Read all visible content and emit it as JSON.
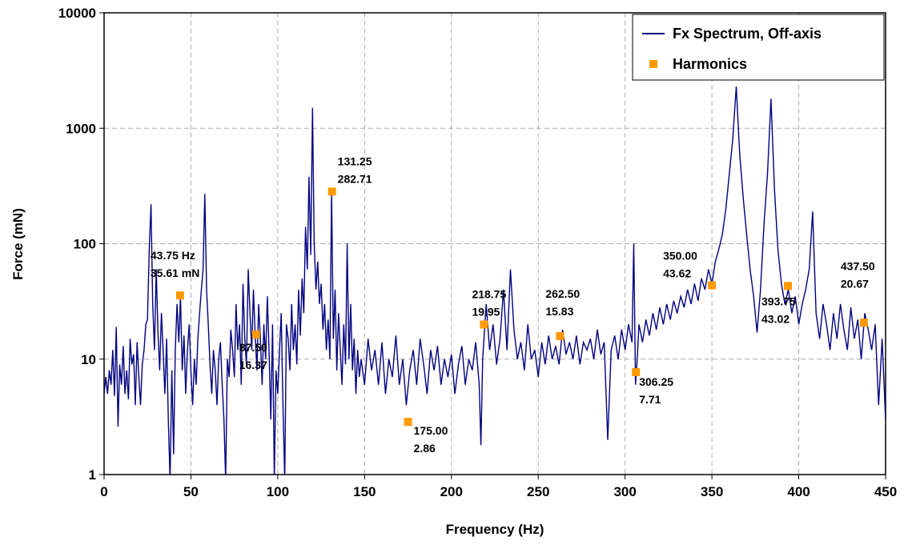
{
  "chart_data": {
    "type": "line",
    "xlabel": "Frequency (Hz)",
    "ylabel": "Force (mN)",
    "xlim": [
      0,
      450
    ],
    "xticks": [
      0,
      50,
      100,
      150,
      200,
      250,
      300,
      350,
      400,
      450
    ],
    "ylim": [
      1,
      10000
    ],
    "yticks": [
      1,
      10,
      100,
      1000,
      10000
    ],
    "log_y": true,
    "grid": true,
    "legend": "top-right",
    "series": [
      {
        "name": "Fx Spectrum, Off-axis",
        "color": "#000080",
        "x": [
          0,
          1,
          2,
          3,
          4,
          5,
          6,
          7,
          8,
          9,
          10,
          11,
          12,
          13,
          14,
          15,
          16,
          17,
          18,
          19,
          20,
          21,
          22,
          23,
          24,
          25,
          26,
          27,
          28,
          29,
          30,
          31,
          32,
          33,
          34,
          35,
          36,
          37,
          38,
          39,
          40,
          41,
          42,
          43,
          44,
          45,
          46,
          47,
          48,
          49,
          50,
          51,
          52,
          53,
          54,
          55,
          56,
          57,
          58,
          59,
          60,
          61,
          62,
          63,
          64,
          65,
          66,
          67,
          68,
          69,
          70,
          71,
          72,
          73,
          74,
          75,
          76,
          77,
          78,
          79,
          80,
          81,
          82,
          83,
          84,
          85,
          86,
          87,
          88,
          89,
          90,
          91,
          92,
          93,
          94,
          95,
          96,
          97,
          98,
          99,
          100,
          101,
          102,
          103,
          104,
          105,
          106,
          107,
          108,
          109,
          110,
          111,
          112,
          113,
          114,
          115,
          116,
          117,
          118,
          119,
          120,
          121,
          122,
          123,
          124,
          125,
          126,
          127,
          128,
          129,
          130,
          131,
          132,
          133,
          134,
          135,
          136,
          137,
          138,
          139,
          140,
          141,
          142,
          143,
          144,
          145,
          146,
          147,
          148,
          150,
          152,
          154,
          156,
          158,
          160,
          162,
          164,
          166,
          168,
          170,
          172,
          174,
          176,
          178,
          180,
          182,
          184,
          186,
          188,
          190,
          192,
          194,
          196,
          198,
          200,
          202,
          204,
          206,
          208,
          210,
          212,
          214,
          216,
          217,
          218,
          220,
          222,
          224,
          226,
          228,
          230,
          232,
          234,
          236,
          238,
          240,
          242,
          244,
          246,
          248,
          250,
          252,
          254,
          256,
          258,
          260,
          262,
          264,
          266,
          268,
          270,
          272,
          274,
          276,
          278,
          280,
          282,
          284,
          286,
          288,
          290,
          292,
          294,
          296,
          298,
          300,
          302,
          304,
          305,
          306,
          307,
          308,
          310,
          312,
          314,
          316,
          318,
          320,
          322,
          324,
          326,
          328,
          330,
          332,
          334,
          336,
          338,
          340,
          342,
          344,
          346,
          348,
          350,
          352,
          354,
          356,
          358,
          360,
          362,
          364,
          366,
          368,
          370,
          372,
          374,
          376,
          378,
          380,
          382,
          384,
          386,
          388,
          390,
          392,
          394,
          396,
          398,
          400,
          402,
          404,
          406,
          408,
          410,
          412,
          414,
          416,
          418,
          420,
          422,
          424,
          426,
          428,
          430,
          432,
          434,
          436,
          438,
          440,
          442,
          444,
          446,
          448,
          450
        ],
        "values": [
          5,
          7,
          5,
          8,
          6,
          12,
          4.8,
          19,
          2.6,
          9,
          6,
          13,
          5,
          8,
          4.5,
          15,
          9,
          11,
          4,
          14,
          7,
          4,
          9,
          12,
          20,
          22,
          90,
          220,
          30,
          12,
          60,
          18,
          8,
          25,
          12,
          5,
          15,
          3,
          0.9,
          8,
          1.5,
          12,
          30,
          14,
          35,
          8,
          16,
          5,
          12,
          20,
          8,
          4,
          10,
          6,
          15,
          25,
          40,
          60,
          270,
          40,
          20,
          9,
          5,
          12,
          8,
          4,
          10,
          14,
          6,
          3,
          0.9,
          10,
          7,
          18,
          12,
          7,
          30,
          12,
          20,
          6,
          45,
          15,
          9,
          60,
          25,
          12,
          40,
          16,
          8,
          30,
          15,
          6,
          20,
          10,
          35,
          12,
          3,
          20,
          0.9,
          8,
          5,
          12,
          25,
          4,
          0.9,
          20,
          15,
          8,
          30,
          12,
          20,
          9,
          40,
          16,
          50,
          25,
          140,
          60,
          380,
          80,
          1500,
          100,
          40,
          70,
          30,
          45,
          18,
          30,
          12,
          22,
          10,
          280,
          15,
          40,
          8,
          25,
          12,
          6,
          20,
          9,
          100,
          10,
          30,
          8,
          15,
          5,
          12,
          7,
          10,
          6,
          15,
          8,
          12,
          6,
          14,
          5,
          10,
          7,
          16,
          6,
          10,
          4,
          8,
          12,
          6,
          15,
          9,
          5,
          12,
          8,
          13,
          6,
          10,
          7,
          11,
          5,
          9,
          13,
          6,
          10,
          8,
          14,
          6,
          1.8,
          10,
          30,
          12,
          20,
          9,
          15,
          40,
          12,
          60,
          18,
          10,
          14,
          8,
          20,
          10,
          12,
          7,
          14,
          9,
          16,
          10,
          13,
          9,
          18,
          11,
          14,
          10,
          16,
          9,
          14,
          12,
          15,
          10,
          18,
          11,
          14,
          2,
          12,
          16,
          10,
          18,
          12,
          20,
          14,
          100,
          6,
          10,
          20,
          14,
          22,
          16,
          25,
          18,
          28,
          20,
          30,
          22,
          32,
          25,
          35,
          28,
          40,
          30,
          45,
          32,
          50,
          40,
          60,
          45,
          70,
          90,
          120,
          200,
          400,
          800,
          2300,
          600,
          250,
          120,
          60,
          35,
          17,
          40,
          150,
          400,
          1800,
          300,
          90,
          45,
          30,
          40,
          25,
          35,
          20,
          30,
          40,
          60,
          190,
          25,
          15,
          30,
          20,
          12,
          25,
          15,
          30,
          18,
          12,
          28,
          15,
          22,
          10,
          25,
          18,
          12,
          20,
          4,
          15,
          3
        ]
      },
      {
        "name": "Harmonics",
        "color": "#ff9900",
        "type": "scatter",
        "x": [
          43.75,
          87.5,
          131.25,
          175,
          218.75,
          262.5,
          306.25,
          350,
          393.75,
          437.5
        ],
        "x_labels": [
          "43.75 Hz",
          "87.50",
          "131.25",
          "175.00",
          "218.75",
          "262.50",
          "306.25",
          "350.00",
          "393.75",
          "437.50"
        ],
        "values": [
          35.61,
          16.37,
          282.71,
          2.86,
          19.95,
          15.83,
          7.71,
          43.62,
          43.02,
          20.67
        ],
        "value_labels": [
          "35.61 mN",
          "16.37",
          "282.71",
          "2.86",
          "19.95",
          "15.83",
          "7.71",
          "43.62",
          "43.02",
          "20.67"
        ]
      }
    ]
  }
}
